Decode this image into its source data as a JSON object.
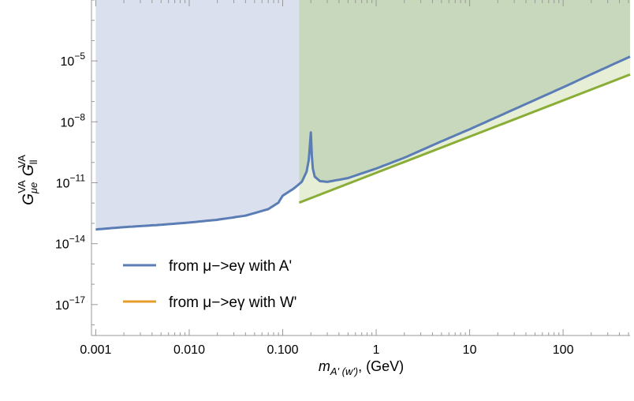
{
  "chart_data": {
    "type": "line",
    "title": "",
    "x_scale": "log",
    "y_scale": "log",
    "xlim": [
      0.0009,
      520
    ],
    "ylim": [
      3e-19,
      0.01
    ],
    "x_ticks": [
      {
        "value": 0.001,
        "label": "0.001"
      },
      {
        "value": 0.01,
        "label": "0.010"
      },
      {
        "value": 0.1,
        "label": "0.100"
      },
      {
        "value": 1,
        "label": "1"
      },
      {
        "value": 10,
        "label": "10"
      },
      {
        "value": 100,
        "label": "100"
      }
    ],
    "y_ticks": [
      {
        "value": 1e-05,
        "base": "10",
        "exp": "−5"
      },
      {
        "value": 1e-08,
        "base": "10",
        "exp": "−8"
      },
      {
        "value": 1e-11,
        "base": "10",
        "exp": "−11"
      },
      {
        "value": 1e-14,
        "base": "10",
        "exp": "−14"
      },
      {
        "value": 1e-17,
        "base": "10",
        "exp": "−17"
      }
    ],
    "xlabel": {
      "main": "m",
      "sub": "A' (w')",
      "suffix": ", (GeV)"
    },
    "ylabel": {
      "g1": "G",
      "sub1": "μe",
      "sup1": "VA",
      "g2": "G",
      "sub2": "ll",
      "sup2": "VA"
    },
    "series": [
      {
        "name": "from μ−>eγ with A'",
        "color": "#5b7db6",
        "x": [
          0.001,
          0.002,
          0.005,
          0.01,
          0.02,
          0.04,
          0.07,
          0.09,
          0.1,
          0.13,
          0.16,
          0.18,
          0.19,
          0.195,
          0.2,
          0.205,
          0.21,
          0.22,
          0.25,
          0.3,
          0.5,
          1,
          2,
          5,
          10,
          20,
          50,
          100,
          200,
          500
        ],
        "y": [
          5e-14,
          6.5e-14,
          8.5e-14,
          1.1e-13,
          1.5e-13,
          2.4e-13,
          5e-13,
          1.05e-12,
          2.3e-12,
          5e-12,
          1.1e-11,
          3.5e-11,
          1.3e-10,
          6.5e-10,
          3e-09,
          2e-10,
          5e-11,
          2e-11,
          1.2e-11,
          1.1e-11,
          1.7e-11,
          5e-11,
          1.7e-10,
          1.1e-09,
          4.3e-09,
          1.8e-08,
          1.2e-07,
          5e-07,
          2.2e-06,
          1.5e-05
        ]
      },
      {
        "name": "from μ−>eγ with W'",
        "color": "#e49d28",
        "x": [],
        "y": []
      }
    ],
    "bound_line": {
      "color": "#8aad37",
      "x": [
        0.15,
        500
      ],
      "y": [
        1.05e-12,
        2e-06
      ]
    },
    "shaded_regions": [
      {
        "color": "#dbe0ee",
        "fill_to": "top",
        "follows": "series0",
        "x_range": [
          0.001,
          0.16
        ]
      },
      {
        "color": "#c8d8bc",
        "fill_to": "top",
        "follows": "series0",
        "x_range": [
          0.15,
          520
        ]
      },
      {
        "color": "#e6efd5",
        "fill_between": [
          "bound_line",
          "series0"
        ],
        "x_range": [
          0.15,
          520
        ]
      }
    ],
    "legend": {
      "placement": "bottom-left"
    }
  }
}
